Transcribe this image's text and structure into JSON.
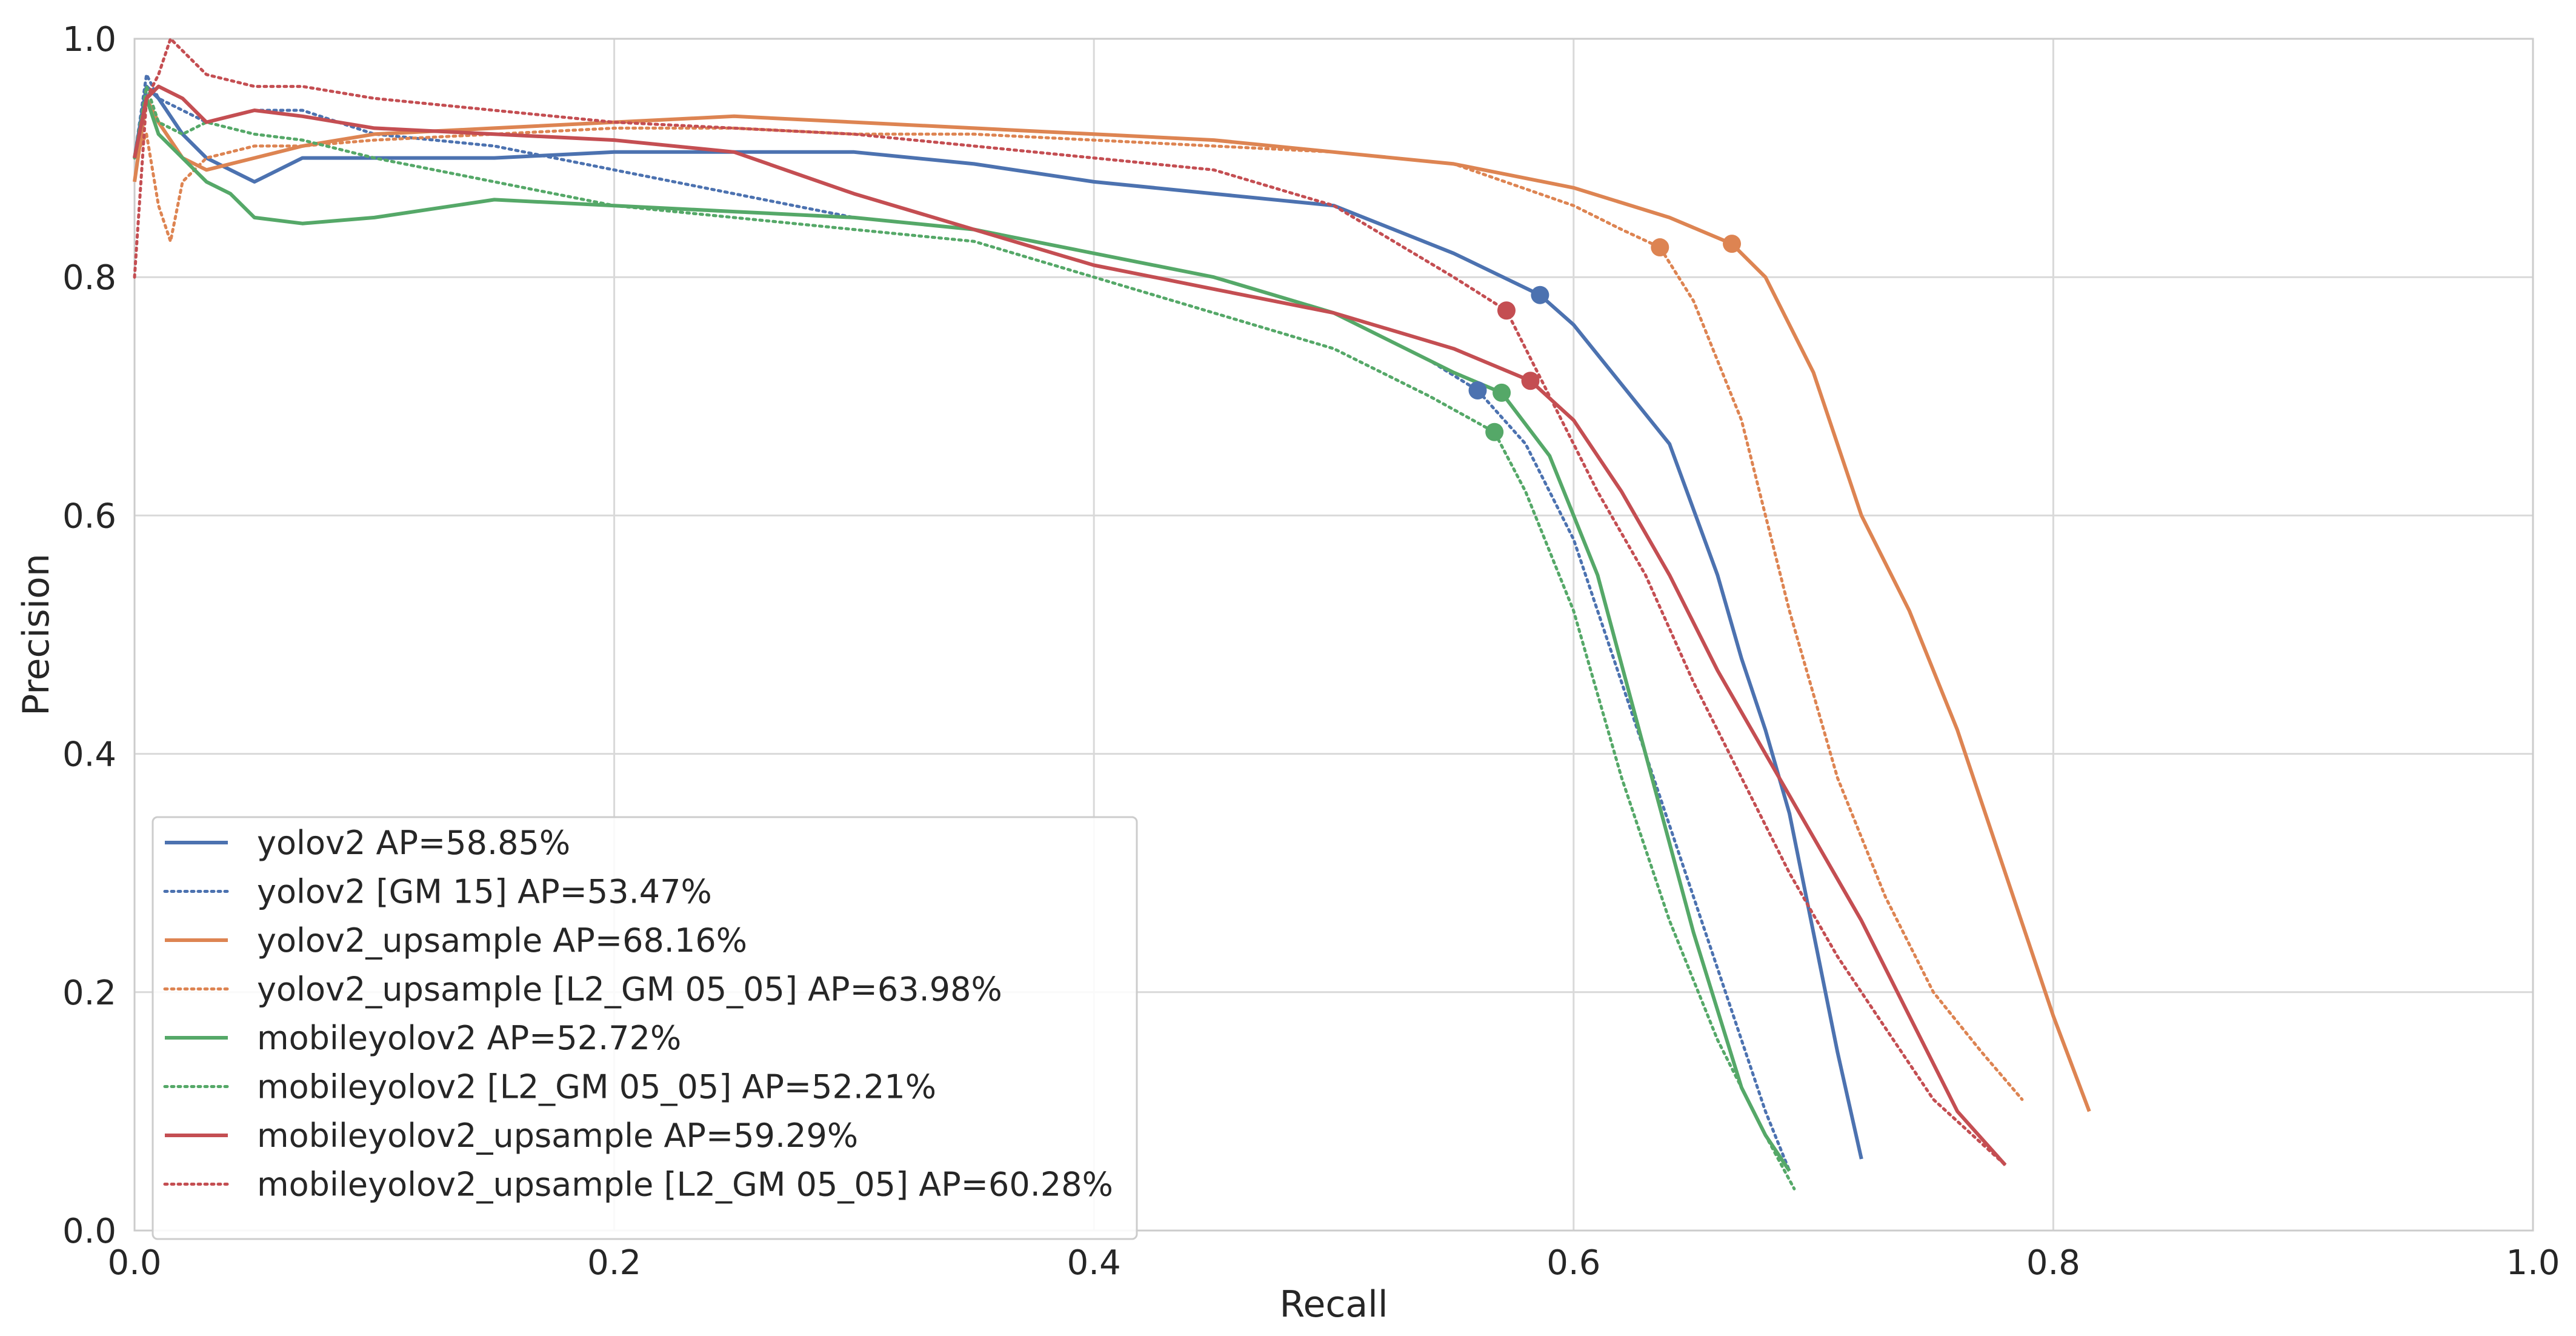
{
  "chart_data": {
    "type": "line",
    "title": "",
    "xlabel": "Recall",
    "ylabel": "Precision",
    "xlim": [
      0.0,
      1.0
    ],
    "ylim": [
      0.0,
      1.0
    ],
    "xticks": [
      "0.0",
      "0.2",
      "0.4",
      "0.6",
      "0.8",
      "1.0"
    ],
    "yticks": [
      "0.0",
      "0.2",
      "0.4",
      "0.6",
      "0.8",
      "1.0"
    ],
    "grid": true,
    "legend_position": "lower-left",
    "series": [
      {
        "name": "yolov2 AP=58.85%",
        "color": "#4c72b0",
        "style": "solid",
        "x": [
          0.0,
          0.005,
          0.01,
          0.02,
          0.03,
          0.05,
          0.07,
          0.1,
          0.15,
          0.2,
          0.25,
          0.3,
          0.35,
          0.4,
          0.45,
          0.5,
          0.55,
          0.586,
          0.6,
          0.62,
          0.64,
          0.66,
          0.67,
          0.68,
          0.69,
          0.7,
          0.71,
          0.72
        ],
        "y": [
          0.9,
          0.96,
          0.95,
          0.92,
          0.9,
          0.88,
          0.9,
          0.9,
          0.9,
          0.905,
          0.905,
          0.905,
          0.895,
          0.88,
          0.87,
          0.86,
          0.82,
          0.785,
          0.76,
          0.71,
          0.66,
          0.55,
          0.48,
          0.42,
          0.35,
          0.25,
          0.15,
          0.06
        ],
        "marker": {
          "x": 0.586,
          "y": 0.785
        }
      },
      {
        "name": "yolov2 [GM 15] AP=53.47%",
        "color": "#4c72b0",
        "style": "dotted",
        "x": [
          0.0,
          0.005,
          0.01,
          0.02,
          0.03,
          0.05,
          0.07,
          0.1,
          0.15,
          0.2,
          0.25,
          0.3,
          0.35,
          0.4,
          0.45,
          0.5,
          0.54,
          0.56,
          0.58,
          0.6,
          0.62,
          0.64,
          0.66,
          0.68,
          0.69
        ],
        "y": [
          0.9,
          0.97,
          0.95,
          0.94,
          0.93,
          0.94,
          0.94,
          0.92,
          0.91,
          0.89,
          0.87,
          0.85,
          0.84,
          0.82,
          0.8,
          0.77,
          0.73,
          0.705,
          0.66,
          0.58,
          0.46,
          0.34,
          0.22,
          0.1,
          0.05
        ],
        "marker": {
          "x": 0.56,
          "y": 0.705
        }
      },
      {
        "name": "yolov2_upsample AP=68.16%",
        "color": "#dd8452",
        "style": "solid",
        "x": [
          0.0,
          0.005,
          0.01,
          0.02,
          0.03,
          0.05,
          0.07,
          0.1,
          0.15,
          0.2,
          0.25,
          0.3,
          0.35,
          0.4,
          0.45,
          0.5,
          0.55,
          0.6,
          0.64,
          0.666,
          0.68,
          0.7,
          0.72,
          0.74,
          0.76,
          0.78,
          0.8,
          0.815
        ],
        "y": [
          0.88,
          0.95,
          0.93,
          0.9,
          0.89,
          0.9,
          0.91,
          0.92,
          0.925,
          0.93,
          0.935,
          0.93,
          0.925,
          0.92,
          0.915,
          0.905,
          0.895,
          0.875,
          0.85,
          0.828,
          0.8,
          0.72,
          0.6,
          0.52,
          0.42,
          0.3,
          0.18,
          0.1
        ],
        "marker": {
          "x": 0.666,
          "y": 0.828
        }
      },
      {
        "name": "yolov2_upsample [L2_GM 05_05] AP=63.98%",
        "color": "#dd8452",
        "style": "dotted",
        "x": [
          0.0,
          0.005,
          0.01,
          0.015,
          0.02,
          0.03,
          0.05,
          0.07,
          0.1,
          0.15,
          0.2,
          0.25,
          0.3,
          0.35,
          0.4,
          0.45,
          0.5,
          0.55,
          0.6,
          0.62,
          0.636,
          0.65,
          0.67,
          0.69,
          0.71,
          0.73,
          0.75,
          0.77,
          0.787
        ],
        "y": [
          0.9,
          0.92,
          0.86,
          0.83,
          0.88,
          0.9,
          0.91,
          0.91,
          0.915,
          0.92,
          0.925,
          0.925,
          0.92,
          0.92,
          0.915,
          0.91,
          0.905,
          0.895,
          0.86,
          0.84,
          0.825,
          0.78,
          0.68,
          0.52,
          0.38,
          0.28,
          0.2,
          0.15,
          0.11
        ],
        "marker": {
          "x": 0.636,
          "y": 0.825
        }
      },
      {
        "name": "mobileyolov2 AP=52.72%",
        "color": "#55a868",
        "style": "solid",
        "x": [
          0.0,
          0.005,
          0.01,
          0.02,
          0.03,
          0.04,
          0.05,
          0.07,
          0.1,
          0.15,
          0.2,
          0.25,
          0.3,
          0.35,
          0.4,
          0.45,
          0.5,
          0.55,
          0.57,
          0.59,
          0.61,
          0.63,
          0.65,
          0.67,
          0.68,
          0.69
        ],
        "y": [
          0.9,
          0.95,
          0.92,
          0.9,
          0.88,
          0.87,
          0.85,
          0.845,
          0.85,
          0.865,
          0.86,
          0.855,
          0.85,
          0.84,
          0.82,
          0.8,
          0.77,
          0.72,
          0.703,
          0.65,
          0.55,
          0.4,
          0.25,
          0.12,
          0.08,
          0.05
        ],
        "marker": {
          "x": 0.57,
          "y": 0.703
        }
      },
      {
        "name": "mobileyolov2 [L2_GM 05_05] AP=52.21%",
        "color": "#55a868",
        "style": "dotted",
        "x": [
          0.0,
          0.005,
          0.01,
          0.02,
          0.03,
          0.05,
          0.07,
          0.1,
          0.15,
          0.2,
          0.25,
          0.3,
          0.35,
          0.4,
          0.45,
          0.5,
          0.54,
          0.567,
          0.58,
          0.6,
          0.62,
          0.64,
          0.66,
          0.68,
          0.692
        ],
        "y": [
          0.9,
          0.96,
          0.93,
          0.92,
          0.93,
          0.92,
          0.915,
          0.9,
          0.88,
          0.86,
          0.85,
          0.84,
          0.83,
          0.8,
          0.77,
          0.74,
          0.7,
          0.67,
          0.62,
          0.52,
          0.38,
          0.26,
          0.16,
          0.08,
          0.035
        ],
        "marker": {
          "x": 0.567,
          "y": 0.67
        }
      },
      {
        "name": "mobileyolov2_upsample AP=59.29%",
        "color": "#c44e52",
        "style": "solid",
        "x": [
          0.0,
          0.005,
          0.01,
          0.02,
          0.03,
          0.05,
          0.07,
          0.1,
          0.15,
          0.2,
          0.25,
          0.3,
          0.35,
          0.4,
          0.45,
          0.5,
          0.55,
          0.582,
          0.6,
          0.62,
          0.64,
          0.66,
          0.68,
          0.7,
          0.72,
          0.74,
          0.76,
          0.78
        ],
        "y": [
          0.9,
          0.95,
          0.96,
          0.95,
          0.93,
          0.94,
          0.935,
          0.925,
          0.92,
          0.915,
          0.905,
          0.87,
          0.84,
          0.81,
          0.79,
          0.77,
          0.74,
          0.713,
          0.68,
          0.62,
          0.55,
          0.47,
          0.4,
          0.33,
          0.26,
          0.18,
          0.1,
          0.055
        ],
        "marker": {
          "x": 0.582,
          "y": 0.713
        }
      },
      {
        "name": "mobileyolov2_upsample [L2_GM 05_05] AP=60.28%",
        "color": "#c44e52",
        "style": "dotted",
        "x": [
          0.0,
          0.005,
          0.01,
          0.015,
          0.02,
          0.03,
          0.05,
          0.07,
          0.1,
          0.15,
          0.2,
          0.25,
          0.3,
          0.35,
          0.4,
          0.45,
          0.5,
          0.55,
          0.572,
          0.59,
          0.61,
          0.63,
          0.65,
          0.67,
          0.69,
          0.71,
          0.73,
          0.75,
          0.78
        ],
        "y": [
          0.8,
          0.95,
          0.97,
          1.0,
          0.99,
          0.97,
          0.96,
          0.96,
          0.95,
          0.94,
          0.93,
          0.925,
          0.92,
          0.91,
          0.9,
          0.89,
          0.86,
          0.8,
          0.772,
          0.7,
          0.62,
          0.55,
          0.46,
          0.38,
          0.3,
          0.23,
          0.17,
          0.11,
          0.055
        ],
        "marker": {
          "x": 0.572,
          "y": 0.772
        }
      }
    ]
  }
}
